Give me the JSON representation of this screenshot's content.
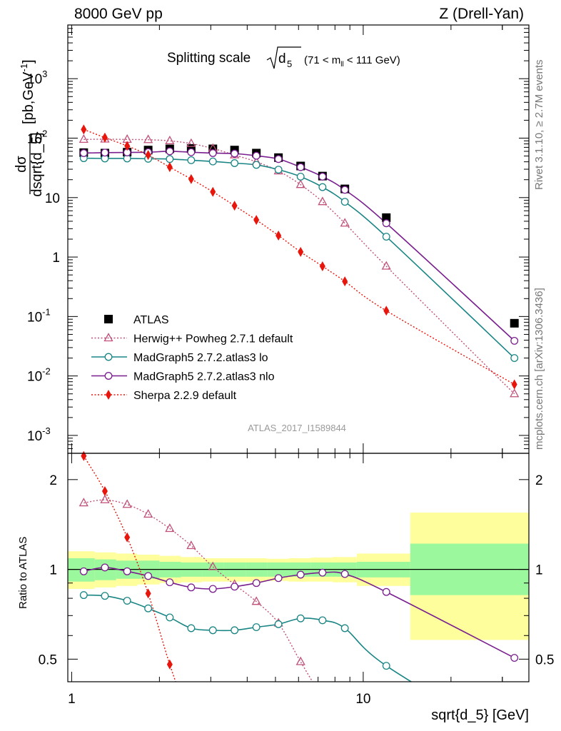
{
  "header": {
    "left": "8000 GeV pp",
    "right": "Z (Drell-Yan)"
  },
  "side": {
    "rivet": "Rivet 3.1.10, ≥ 2.7M events",
    "mcplots": "mcplots.cern.ch [arXiv:1306.3436]"
  },
  "chart_data": [
    {
      "type": "line",
      "title_main": "Splitting scale",
      "title_sqrt": "d",
      "title_sub": "5",
      "title_range": "(71 < m",
      "title_range_sub": "ll",
      "title_range_end": " < 111 GeV)",
      "watermark": "ATLAS_2017_I1589844",
      "xlabel": "sqrt{d_5} [GeV]",
      "ylabel": "dσ/dsqrt{d_5} [pb,GeV⁻¹]",
      "ylabel_num": "dσ",
      "ylabel_den": "dsqrt{d_5}",
      "ylabel_unit": "[pb,GeV",
      "ylabel_unit_exp": "-1",
      "ylabel_unit_end": "]",
      "xscale": "log",
      "yscale": "log",
      "xlim": [
        0.97,
        37.0
      ],
      "ylim": [
        0.0005,
        8000
      ],
      "yticks": [
        {
          "v": 0.001,
          "base": "10",
          "exp": "-3"
        },
        {
          "v": 0.01,
          "base": "10",
          "exp": "-2"
        },
        {
          "v": 0.1,
          "base": "10",
          "exp": "-1"
        },
        {
          "v": 1,
          "base": "1",
          "exp": ""
        },
        {
          "v": 10,
          "base": "10",
          "exp": ""
        },
        {
          "v": 100,
          "base": "10",
          "exp": "2"
        },
        {
          "v": 1000,
          "base": "10",
          "exp": "3"
        }
      ],
      "xticks": [
        {
          "v": 1,
          "label": "1"
        },
        {
          "v": 10,
          "label": "10"
        }
      ],
      "legend_position": "lower-left",
      "series": [
        {
          "name": "ATLAS",
          "color": "#000000",
          "marker": "square",
          "line": "none",
          "x": [
            1.1,
            1.3,
            1.55,
            1.83,
            2.17,
            2.57,
            3.05,
            3.62,
            4.3,
            5.12,
            6.1,
            7.25,
            8.65,
            12.0,
            33.0
          ],
          "y": [
            57,
            56,
            58,
            63,
            66,
            67,
            66,
            63,
            56,
            47,
            34,
            23,
            14,
            4.6,
            0.077
          ]
        },
        {
          "name": "Herwig++ Powheg 2.7.1 default",
          "color": "#c0507a",
          "marker": "triangle",
          "line": "dotted",
          "x": [
            1.1,
            1.3,
            1.55,
            1.83,
            2.17,
            2.57,
            3.05,
            3.62,
            4.3,
            5.12,
            6.1,
            7.25,
            8.65,
            12.0,
            33.0
          ],
          "y": [
            95,
            96,
            95,
            94,
            90,
            81,
            67,
            52,
            40,
            28,
            16.5,
            8.5,
            3.7,
            0.7,
            0.005
          ]
        },
        {
          "name": "MadGraph5 2.7.2.atlas3 lo",
          "color": "#1a8585",
          "marker": "circle",
          "line": "solid",
          "x": [
            1.1,
            1.3,
            1.55,
            1.83,
            2.17,
            2.57,
            3.05,
            3.62,
            4.3,
            5.12,
            6.1,
            7.25,
            8.65,
            12.0,
            33.0
          ],
          "y": [
            46,
            45.5,
            45.5,
            45,
            44.5,
            42.5,
            40.5,
            38,
            35.5,
            29.5,
            22.5,
            15,
            8.5,
            2.2,
            0.02
          ]
        },
        {
          "name": "MadGraph5 2.7.2.atlas3 nlo",
          "color": "#7a1f8f",
          "marker": "circle",
          "line": "solid",
          "x": [
            1.1,
            1.3,
            1.55,
            1.83,
            2.17,
            2.57,
            3.05,
            3.62,
            4.3,
            5.12,
            6.1,
            7.25,
            8.65,
            12.0,
            33.0
          ],
          "y": [
            56,
            57,
            57.5,
            58,
            60,
            58,
            56,
            55,
            50.5,
            44.5,
            32.5,
            22.5,
            13.5,
            3.7,
            0.039
          ]
        },
        {
          "name": "Sherpa 2.2.9 default",
          "color": "#e8150c",
          "marker": "diamond",
          "line": "dotted",
          "x": [
            1.1,
            1.3,
            1.55,
            1.83,
            2.17,
            2.57,
            3.05,
            3.62,
            4.3,
            5.12,
            6.1,
            7.25,
            8.65,
            12.0,
            33.0
          ],
          "y": [
            140,
            102,
            74,
            52,
            32.5,
            20.5,
            12.5,
            7.3,
            4.2,
            2.3,
            1.22,
            0.7,
            0.39,
            0.125,
            0.0072
          ]
        }
      ]
    },
    {
      "type": "line",
      "ylabel": "Ratio to ATLAS",
      "xscale": "log",
      "yscale": "log",
      "xlim": [
        0.97,
        37.0
      ],
      "ylim": [
        0.42,
        2.45
      ],
      "yticks": [
        {
          "v": 0.5,
          "label": "0.5"
        },
        {
          "v": 1,
          "label": "1"
        },
        {
          "v": 2,
          "label": "2"
        }
      ],
      "uncertainty_bands": {
        "edges": [
          0.97,
          1.2,
          1.42,
          1.68,
          2.0,
          2.37,
          2.8,
          3.33,
          3.95,
          4.68,
          5.55,
          6.6,
          7.85,
          9.5,
          14.5,
          37.0
        ],
        "stat_lo": [
          0.91,
          0.92,
          0.93,
          0.93,
          0.94,
          0.945,
          0.945,
          0.945,
          0.945,
          0.945,
          0.945,
          0.945,
          0.945,
          0.94,
          0.82
        ],
        "stat_hi": [
          1.09,
          1.08,
          1.07,
          1.07,
          1.06,
          1.055,
          1.055,
          1.055,
          1.055,
          1.055,
          1.055,
          1.055,
          1.055,
          1.06,
          1.22
        ],
        "total_lo": [
          0.86,
          0.87,
          0.88,
          0.89,
          0.9,
          0.905,
          0.91,
          0.91,
          0.91,
          0.915,
          0.91,
          0.91,
          0.905,
          0.88,
          0.58
        ],
        "total_hi": [
          1.15,
          1.14,
          1.13,
          1.12,
          1.11,
          1.1,
          1.09,
          1.09,
          1.09,
          1.085,
          1.09,
          1.095,
          1.1,
          1.13,
          1.55
        ],
        "stat_color": "#9cf89c",
        "total_color": "#fefe9c"
      },
      "series": [
        {
          "name": "Herwig++ Powheg 2.7.1 default",
          "color": "#c0507a",
          "marker": "triangle",
          "line": "dotted",
          "x": [
            1.1,
            1.3,
            1.55,
            1.83,
            2.17,
            2.57,
            3.05,
            3.62,
            4.3,
            5.12,
            6.1,
            7.25
          ],
          "y": [
            1.67,
            1.71,
            1.65,
            1.53,
            1.37,
            1.2,
            1.02,
            0.89,
            0.78,
            0.66,
            0.49,
            0.37
          ]
        },
        {
          "name": "MadGraph5 2.7.2.atlas3 lo",
          "color": "#1a8585",
          "marker": "circle",
          "line": "solid",
          "x": [
            1.1,
            1.3,
            1.55,
            1.83,
            2.17,
            2.57,
            3.05,
            3.62,
            4.3,
            5.12,
            6.1,
            7.25,
            8.65,
            12.0,
            33.0
          ],
          "y": [
            0.82,
            0.815,
            0.785,
            0.74,
            0.69,
            0.635,
            0.625,
            0.625,
            0.64,
            0.655,
            0.685,
            0.675,
            0.635,
            0.475,
            0.26
          ]
        },
        {
          "name": "MadGraph5 2.7.2.atlas3 nlo",
          "color": "#7a1f8f",
          "marker": "circle",
          "line": "solid",
          "x": [
            1.1,
            1.3,
            1.55,
            1.83,
            2.17,
            2.57,
            3.05,
            3.62,
            4.3,
            5.12,
            6.1,
            7.25,
            8.65,
            12.0,
            33.0
          ],
          "y": [
            0.985,
            1.015,
            0.985,
            0.95,
            0.905,
            0.87,
            0.86,
            0.875,
            0.9,
            0.935,
            0.96,
            0.975,
            0.965,
            0.84,
            0.505
          ]
        },
        {
          "name": "Sherpa 2.2.9 default",
          "color": "#e8150c",
          "marker": "diamond",
          "line": "dotted",
          "x": [
            1.1,
            1.3,
            1.55,
            1.83,
            2.17,
            2.57
          ],
          "y": [
            2.4,
            1.83,
            1.28,
            0.83,
            0.48,
            0.3
          ]
        }
      ]
    }
  ]
}
